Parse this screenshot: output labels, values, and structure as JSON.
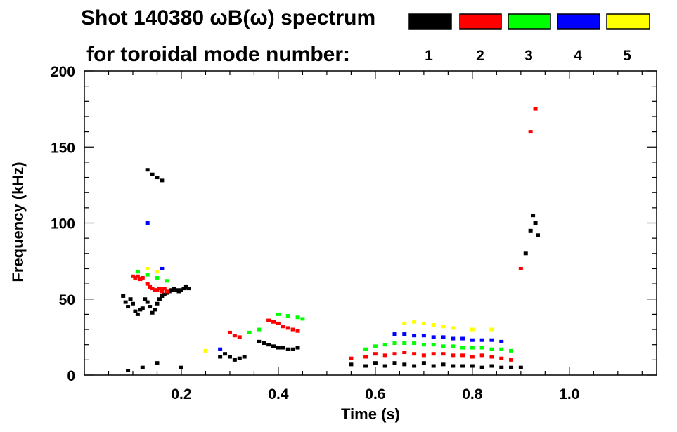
{
  "chart_data": {
    "type": "scatter",
    "title_line1": "Shot 140380 ωB(ω) spectrum",
    "title_line2": "for toroidal mode number:",
    "xlabel": "Time (s)",
    "ylabel": "Frequency (kHz)",
    "xlim": [
      0.0,
      1.18
    ],
    "ylim": [
      0,
      200
    ],
    "xticks": [
      0.2,
      0.4,
      0.6,
      0.8,
      1.0
    ],
    "xtick_labels": [
      "0.2",
      "0.4",
      "0.6",
      "0.8",
      "1.0"
    ],
    "yticks": [
      0,
      50,
      100,
      150,
      200
    ],
    "ytick_labels": [
      "0",
      "50",
      "100",
      "150",
      "200"
    ],
    "legend": [
      {
        "label": "1",
        "color": "#000000"
      },
      {
        "label": "2",
        "color": "#ff0000"
      },
      {
        "label": "3",
        "color": "#00ff00"
      },
      {
        "label": "4",
        "color": "#0000ff"
      },
      {
        "label": "5",
        "color": "#ffff00"
      }
    ],
    "series": [
      {
        "name": "n=1",
        "color": "#000000",
        "points": [
          [
            0.08,
            52
          ],
          [
            0.085,
            48
          ],
          [
            0.09,
            45
          ],
          [
            0.095,
            50
          ],
          [
            0.1,
            47
          ],
          [
            0.105,
            42
          ],
          [
            0.11,
            40
          ],
          [
            0.115,
            43
          ],
          [
            0.12,
            44
          ],
          [
            0.125,
            50
          ],
          [
            0.13,
            48
          ],
          [
            0.135,
            45
          ],
          [
            0.14,
            41
          ],
          [
            0.145,
            43
          ],
          [
            0.15,
            47
          ],
          [
            0.155,
            50
          ],
          [
            0.16,
            52
          ],
          [
            0.165,
            53
          ],
          [
            0.17,
            54
          ],
          [
            0.175,
            55
          ],
          [
            0.18,
            56
          ],
          [
            0.185,
            57
          ],
          [
            0.19,
            56
          ],
          [
            0.195,
            55
          ],
          [
            0.2,
            56
          ],
          [
            0.205,
            57
          ],
          [
            0.21,
            58
          ],
          [
            0.215,
            57
          ],
          [
            0.13,
            135
          ],
          [
            0.14,
            132
          ],
          [
            0.15,
            130
          ],
          [
            0.16,
            128
          ],
          [
            0.09,
            3
          ],
          [
            0.12,
            5
          ],
          [
            0.15,
            8
          ],
          [
            0.2,
            5
          ],
          [
            0.28,
            12
          ],
          [
            0.29,
            14
          ],
          [
            0.3,
            12
          ],
          [
            0.31,
            10
          ],
          [
            0.32,
            11
          ],
          [
            0.33,
            12
          ],
          [
            0.36,
            22
          ],
          [
            0.37,
            21
          ],
          [
            0.38,
            20
          ],
          [
            0.39,
            19
          ],
          [
            0.4,
            18
          ],
          [
            0.41,
            18
          ],
          [
            0.42,
            17
          ],
          [
            0.43,
            17
          ],
          [
            0.44,
            18
          ],
          [
            0.55,
            7
          ],
          [
            0.58,
            6
          ],
          [
            0.6,
            8
          ],
          [
            0.62,
            6
          ],
          [
            0.64,
            8
          ],
          [
            0.66,
            7
          ],
          [
            0.68,
            6
          ],
          [
            0.7,
            8
          ],
          [
            0.72,
            6
          ],
          [
            0.74,
            7
          ],
          [
            0.76,
            6
          ],
          [
            0.78,
            6
          ],
          [
            0.8,
            6
          ],
          [
            0.82,
            5
          ],
          [
            0.84,
            6
          ],
          [
            0.86,
            5
          ],
          [
            0.88,
            5
          ],
          [
            0.9,
            5
          ],
          [
            0.91,
            80
          ],
          [
            0.92,
            95
          ],
          [
            0.925,
            105
          ],
          [
            0.93,
            100
          ],
          [
            0.935,
            92
          ]
        ]
      },
      {
        "name": "n=2",
        "color": "#ff0000",
        "points": [
          [
            0.1,
            65
          ],
          [
            0.105,
            64
          ],
          [
            0.11,
            65
          ],
          [
            0.115,
            63
          ],
          [
            0.12,
            64
          ],
          [
            0.13,
            60
          ],
          [
            0.135,
            58
          ],
          [
            0.14,
            57
          ],
          [
            0.145,
            56
          ],
          [
            0.15,
            56
          ],
          [
            0.155,
            57
          ],
          [
            0.16,
            55
          ],
          [
            0.165,
            57
          ],
          [
            0.17,
            55
          ],
          [
            0.3,
            28
          ],
          [
            0.31,
            26
          ],
          [
            0.32,
            25
          ],
          [
            0.38,
            36
          ],
          [
            0.39,
            35
          ],
          [
            0.4,
            34
          ],
          [
            0.41,
            32
          ],
          [
            0.42,
            31
          ],
          [
            0.43,
            30
          ],
          [
            0.44,
            29
          ],
          [
            0.55,
            11
          ],
          [
            0.58,
            12
          ],
          [
            0.6,
            14
          ],
          [
            0.62,
            13
          ],
          [
            0.64,
            14
          ],
          [
            0.66,
            15
          ],
          [
            0.68,
            14
          ],
          [
            0.7,
            13
          ],
          [
            0.72,
            14
          ],
          [
            0.74,
            14
          ],
          [
            0.76,
            13
          ],
          [
            0.78,
            13
          ],
          [
            0.8,
            12
          ],
          [
            0.82,
            13
          ],
          [
            0.84,
            12
          ],
          [
            0.86,
            11
          ],
          [
            0.88,
            10
          ],
          [
            0.9,
            70
          ],
          [
            0.92,
            160
          ],
          [
            0.93,
            175
          ]
        ]
      },
      {
        "name": "n=3",
        "color": "#00ff00",
        "points": [
          [
            0.11,
            68
          ],
          [
            0.13,
            66
          ],
          [
            0.15,
            64
          ],
          [
            0.17,
            62
          ],
          [
            0.34,
            28
          ],
          [
            0.36,
            30
          ],
          [
            0.4,
            40
          ],
          [
            0.42,
            39
          ],
          [
            0.44,
            38
          ],
          [
            0.45,
            37
          ],
          [
            0.58,
            17
          ],
          [
            0.6,
            19
          ],
          [
            0.62,
            20
          ],
          [
            0.64,
            21
          ],
          [
            0.66,
            21
          ],
          [
            0.68,
            21
          ],
          [
            0.7,
            20
          ],
          [
            0.72,
            20
          ],
          [
            0.74,
            19
          ],
          [
            0.76,
            19
          ],
          [
            0.78,
            18
          ],
          [
            0.8,
            18
          ],
          [
            0.82,
            18
          ],
          [
            0.84,
            17
          ],
          [
            0.86,
            17
          ],
          [
            0.88,
            16
          ]
        ]
      },
      {
        "name": "n=4",
        "color": "#0000ff",
        "points": [
          [
            0.13,
            100
          ],
          [
            0.16,
            70
          ],
          [
            0.28,
            17
          ],
          [
            0.64,
            27
          ],
          [
            0.66,
            27
          ],
          [
            0.68,
            26
          ],
          [
            0.7,
            26
          ],
          [
            0.72,
            25
          ],
          [
            0.74,
            25
          ],
          [
            0.76,
            24
          ],
          [
            0.78,
            24
          ],
          [
            0.8,
            23
          ],
          [
            0.82,
            23
          ],
          [
            0.84,
            23
          ],
          [
            0.86,
            22
          ]
        ]
      },
      {
        "name": "n=5",
        "color": "#ffff00",
        "points": [
          [
            0.13,
            70
          ],
          [
            0.15,
            68
          ],
          [
            0.25,
            16
          ],
          [
            0.66,
            34
          ],
          [
            0.68,
            35
          ],
          [
            0.7,
            34
          ],
          [
            0.72,
            33
          ],
          [
            0.74,
            32
          ],
          [
            0.76,
            31
          ],
          [
            0.8,
            30
          ],
          [
            0.84,
            30
          ]
        ]
      }
    ]
  }
}
